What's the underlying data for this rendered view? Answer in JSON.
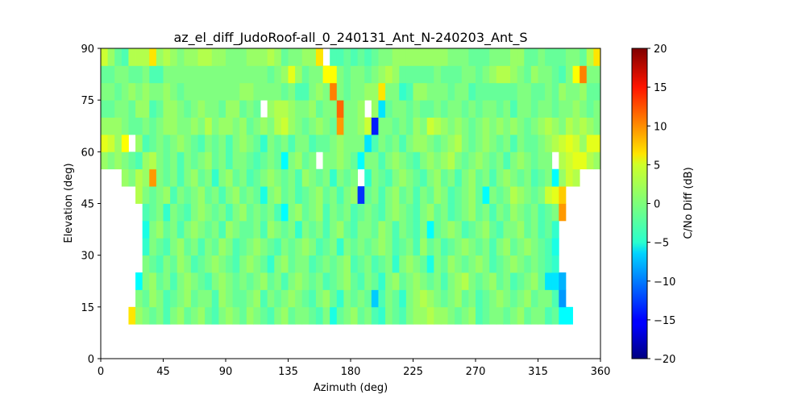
{
  "chart_data": {
    "type": "heatmap",
    "title": "az_el_diff_JudoRoof-all_0_240131_Ant_N-240203_Ant_S",
    "xlabel": "Azimuth (deg)",
    "ylabel": "Elevation (deg)",
    "colorbar_label": "C/No Diff (dB)",
    "colormap": "jet",
    "xlim": [
      0,
      360
    ],
    "ylim": [
      0,
      90
    ],
    "clim": [
      -20,
      20
    ],
    "bin_size_deg": 5,
    "xticks": [
      0,
      45,
      90,
      135,
      180,
      225,
      270,
      315,
      360
    ],
    "yticks": [
      0,
      15,
      30,
      45,
      60,
      75,
      90
    ],
    "cticks": [
      -20,
      -15,
      -10,
      -5,
      0,
      5,
      10,
      15,
      20
    ],
    "rows": [
      {
        "el": 10,
        "az_start": 20,
        "values": [
          6,
          1,
          0,
          -1,
          0,
          -2,
          0,
          1,
          -1,
          0,
          1,
          -1,
          -2,
          0,
          1,
          0,
          -1,
          1,
          0,
          -1,
          -2,
          0,
          1,
          -1,
          0,
          0,
          -1,
          -2,
          0,
          -4,
          -1,
          0,
          1,
          -1,
          0,
          -2,
          -3,
          0,
          -1,
          -2,
          0,
          1,
          1,
          2,
          1,
          1,
          0,
          -1,
          0,
          1,
          -2,
          -1,
          0,
          0,
          -1,
          0,
          1,
          -1,
          0,
          0,
          -2,
          -1,
          -5,
          -5
        ]
      },
      {
        "el": 15,
        "az_start": 25,
        "values": [
          0,
          -1,
          1,
          0,
          -2,
          -1,
          0,
          1,
          -1,
          0,
          0,
          -2,
          1,
          0,
          -1,
          -1,
          0,
          1,
          -2,
          0,
          -1,
          0,
          1,
          0,
          -1,
          -2,
          0,
          1,
          -1,
          -3,
          0,
          -1,
          0,
          -1,
          -7,
          -2,
          0,
          -1,
          -3,
          0,
          1,
          2,
          1,
          0,
          -1,
          0,
          1,
          -1,
          0,
          -2,
          -1,
          0,
          1,
          0,
          -1,
          0,
          1,
          -1,
          0,
          0,
          -2,
          -9
        ]
      },
      {
        "el": 20,
        "az_start": 25,
        "values": [
          -5,
          0,
          1,
          -1,
          0,
          -2,
          0,
          1,
          0,
          -1,
          -2,
          0,
          1,
          0,
          -1,
          0,
          -1,
          0,
          1,
          -1,
          0,
          -2,
          0,
          1,
          0,
          -1,
          0,
          -2,
          -1,
          0,
          1,
          -1,
          -2,
          0,
          -1,
          -3,
          0,
          1,
          -1,
          0,
          1,
          0,
          -1,
          0,
          -2,
          0,
          1,
          2,
          0,
          -1,
          0,
          1,
          -1,
          0,
          -2,
          -1,
          0,
          1,
          -1,
          -6,
          -6,
          -8
        ]
      },
      {
        "el": 25,
        "az_start": 30,
        "values": [
          0,
          -1,
          -2,
          0,
          -1,
          1,
          0,
          -2,
          -1,
          0,
          1,
          0,
          -1,
          -2,
          0,
          1,
          0,
          -1,
          -3,
          0,
          1,
          -1,
          0,
          0,
          -2,
          -1,
          0,
          -1,
          0,
          1,
          -2,
          -1,
          0,
          -2,
          -1,
          0,
          -3,
          0,
          1,
          0,
          -1,
          -4,
          0,
          -1,
          1,
          0,
          -1,
          0,
          1,
          0,
          -2,
          -1,
          0,
          1,
          0,
          -1,
          0,
          -1,
          -2,
          -3
        ]
      },
      {
        "el": 30,
        "az_start": 30,
        "values": [
          -3,
          0,
          -1,
          -2,
          0,
          1,
          -1,
          0,
          -2,
          0,
          -1,
          1,
          0,
          -2,
          -1,
          0,
          1,
          0,
          -1,
          -2,
          0,
          -1,
          0,
          1,
          0,
          -2,
          -1,
          0,
          -3,
          0,
          -1,
          0,
          -1,
          0,
          1,
          0,
          -2,
          -1,
          0,
          -2,
          1,
          -1,
          0,
          -2,
          -1,
          0,
          1,
          0,
          -1,
          0,
          -2,
          0,
          1,
          -1,
          0,
          1,
          0,
          -1,
          -2,
          -4
        ]
      },
      {
        "el": 35,
        "az_start": 30,
        "values": [
          -4,
          0,
          1,
          -1,
          0,
          -2,
          0,
          1,
          0,
          -1,
          0,
          -2,
          1,
          0,
          -1,
          -1,
          0,
          -2,
          1,
          0,
          -1,
          0,
          -3,
          0,
          -1,
          0,
          -2,
          0,
          1,
          -1,
          -2,
          0,
          0,
          -1,
          1,
          0,
          -2,
          0,
          -1,
          -2,
          0,
          -5,
          -1,
          0,
          1,
          0,
          -2,
          -1,
          0,
          1,
          -1,
          -2,
          0,
          0,
          1,
          -1,
          0,
          -2,
          -1,
          -3
        ]
      },
      {
        "el": 40,
        "az_start": 30,
        "values": [
          -2,
          -1,
          0,
          -3,
          0,
          -1,
          -2,
          0,
          1,
          0,
          -1,
          0,
          -2,
          0,
          1,
          -1,
          0,
          -1,
          0,
          -2,
          -5,
          0,
          1,
          -1,
          0,
          1,
          -2,
          0,
          -1,
          0,
          -2,
          -1,
          0,
          -1,
          -2,
          0,
          1,
          0,
          -1,
          -2,
          0,
          1,
          -1,
          0,
          -2,
          -1,
          0,
          1,
          -1,
          0,
          -2,
          0,
          -1,
          1,
          0,
          -1,
          0,
          -2,
          -1,
          0,
          9
        ]
      },
      {
        "el": 45,
        "az_start": 25,
        "values": [
          2,
          0,
          -1,
          0,
          1,
          -2,
          0,
          -1,
          0,
          1,
          -1,
          0,
          -2,
          0,
          1,
          -1,
          0,
          -1,
          -4,
          0,
          1,
          -1,
          0,
          -2,
          -1,
          0,
          1,
          -1,
          0,
          -2,
          0,
          1,
          -13,
          -1,
          0,
          -2,
          0,
          1,
          -1,
          0,
          -2,
          0,
          -1,
          1,
          0,
          -2,
          -1,
          0,
          1,
          -1,
          -5,
          0,
          -1,
          0,
          2,
          1,
          0,
          -1,
          0,
          3,
          4,
          7
        ]
      },
      {
        "el": 50,
        "az_start": 15,
        "values": [
          1,
          0,
          2,
          1,
          9,
          0,
          -1,
          0,
          -2,
          0,
          1,
          -1,
          0,
          -3,
          0,
          1,
          -1,
          0,
          -2,
          -1,
          0,
          1,
          0,
          -1,
          0,
          -2,
          1,
          0,
          -1,
          0,
          -3,
          0,
          -1,
          0,
          null,
          -3,
          0,
          -1,
          -2,
          0,
          1,
          0,
          -1,
          -2,
          0,
          1,
          -1,
          0,
          -2,
          0,
          1,
          -1,
          0,
          -2,
          0,
          1,
          0,
          -1,
          0,
          -2,
          -1,
          0,
          -5,
          1,
          3,
          2
        ]
      },
      {
        "el": 55,
        "az_start": 0,
        "values": [
          1,
          0,
          1,
          0,
          -1,
          -2,
          1,
          2,
          0,
          -1,
          0,
          -2,
          0,
          -1,
          0,
          1,
          -1,
          0,
          -2,
          0,
          0,
          -1,
          -2,
          -1,
          0,
          -1,
          -5,
          0,
          1,
          -1,
          0,
          null,
          0,
          0,
          1,
          0,
          -1,
          -5,
          0,
          0,
          -2,
          0,
          1,
          0,
          -1,
          -2,
          0,
          1,
          0,
          1,
          2,
          0,
          -1,
          0,
          1,
          0,
          -1,
          0,
          -2,
          0,
          1,
          0,
          -1,
          0,
          0,
          null,
          2,
          3,
          4,
          4,
          2,
          1
        ]
      },
      {
        "el": 60,
        "az_start": 0,
        "values": [
          4,
          3,
          1,
          5,
          null,
          1,
          -2,
          -1,
          0,
          -1,
          0,
          1,
          0,
          -1,
          -2,
          0,
          -1,
          0,
          -2,
          0,
          1,
          0,
          -1,
          -3,
          0,
          -1,
          0,
          -2,
          0,
          0,
          -2,
          -1,
          -1,
          0,
          1,
          0,
          0,
          0,
          -6,
          -2,
          0,
          -1,
          0,
          -2,
          0,
          1,
          1,
          0,
          -1,
          0,
          1,
          2,
          0,
          -1,
          0,
          1,
          0,
          -1,
          0,
          -2,
          0,
          -1,
          -1,
          0,
          1,
          2,
          3,
          4,
          3,
          1,
          4,
          4
        ]
      },
      {
        "el": 65,
        "az_start": 0,
        "values": [
          1,
          1,
          1,
          0,
          -1,
          -1,
          0,
          -1,
          0,
          1,
          1,
          0,
          0,
          1,
          0,
          2,
          0,
          1,
          1,
          0,
          1,
          -1,
          0,
          1,
          0,
          2,
          3,
          1,
          0,
          -1,
          0,
          1,
          0,
          -1,
          9,
          0,
          0,
          1,
          3,
          -14,
          0,
          0,
          -1,
          0,
          -1,
          1,
          0,
          3,
          2,
          1,
          0,
          1,
          0,
          -1,
          0,
          1,
          0,
          1,
          0,
          1,
          0,
          -1,
          0,
          1,
          2,
          1,
          0,
          2,
          1,
          2,
          1,
          0
        ]
      },
      {
        "el": 70,
        "az_start": 0,
        "values": [
          -1,
          -1,
          0,
          0,
          -1,
          1,
          1,
          -2,
          -1,
          1,
          1,
          0,
          -1,
          0,
          1,
          0,
          0,
          -1,
          1,
          1,
          -1,
          0,
          -1,
          null,
          1,
          2,
          2,
          1,
          0,
          0,
          1,
          -1,
          0,
          0,
          11,
          0,
          0,
          1,
          null,
          1,
          -6,
          -1,
          0,
          0,
          -1,
          0,
          -1,
          -1,
          0,
          -1,
          0,
          0,
          -1,
          0,
          -1,
          0,
          0,
          -1,
          0,
          -2,
          0,
          0,
          -1,
          0,
          0,
          -1,
          0,
          0,
          1,
          0,
          -1,
          0
        ]
      },
      {
        "el": 75,
        "az_start": 0,
        "values": [
          0,
          0,
          -1,
          0,
          1,
          0,
          1,
          0,
          0,
          1,
          0,
          -1,
          0,
          0,
          0,
          0,
          0,
          0,
          0,
          0,
          1,
          1,
          0,
          0,
          0,
          0,
          -1,
          0,
          -2,
          -2,
          0,
          1,
          0,
          10,
          0,
          -1,
          0,
          0,
          1,
          1,
          6,
          0,
          0,
          -3,
          -2,
          1,
          1,
          0,
          0,
          0,
          -1,
          0,
          0,
          -2,
          -1,
          -1,
          -1,
          -1,
          -1,
          -1,
          0,
          0,
          -1,
          -1,
          0,
          -1,
          1,
          0,
          0,
          1,
          -1,
          -1
        ]
      },
      {
        "el": 80,
        "az_start": 0,
        "values": [
          -1,
          -1,
          0,
          0,
          -1,
          -1,
          0,
          -2,
          -2,
          0,
          0,
          0,
          0,
          0,
          0,
          0,
          0,
          0,
          0,
          0,
          0,
          0,
          0,
          0,
          -1,
          0,
          1,
          4,
          1,
          -1,
          0,
          0,
          5,
          5,
          0,
          -1,
          0,
          0,
          -1,
          0,
          1,
          2,
          1,
          -1,
          -1,
          -1,
          -1,
          -1,
          0,
          -1,
          -1,
          -1,
          0,
          0,
          -1,
          0,
          1,
          2,
          2,
          1,
          0,
          -1,
          1,
          0,
          0,
          -1,
          -2,
          0,
          5,
          10,
          0,
          0
        ]
      },
      {
        "el": 85,
        "az_start": 0,
        "values": [
          3,
          1,
          -1,
          -2,
          2,
          2,
          2,
          6,
          1,
          2,
          1,
          0,
          1,
          1,
          2,
          2,
          1,
          1,
          0,
          0,
          0,
          1,
          1,
          1,
          2,
          1,
          -1,
          0,
          0,
          1,
          1,
          6,
          null,
          -2,
          -2,
          -1,
          -2,
          -1,
          -2,
          -1,
          0,
          0,
          1,
          1,
          1,
          1,
          1,
          1,
          1,
          1,
          0,
          0,
          0,
          -1,
          -1,
          -1,
          0,
          0,
          0,
          1,
          1,
          -1,
          -1,
          0,
          -1,
          -1,
          -1,
          0,
          0,
          -1,
          2,
          6
        ]
      }
    ]
  }
}
